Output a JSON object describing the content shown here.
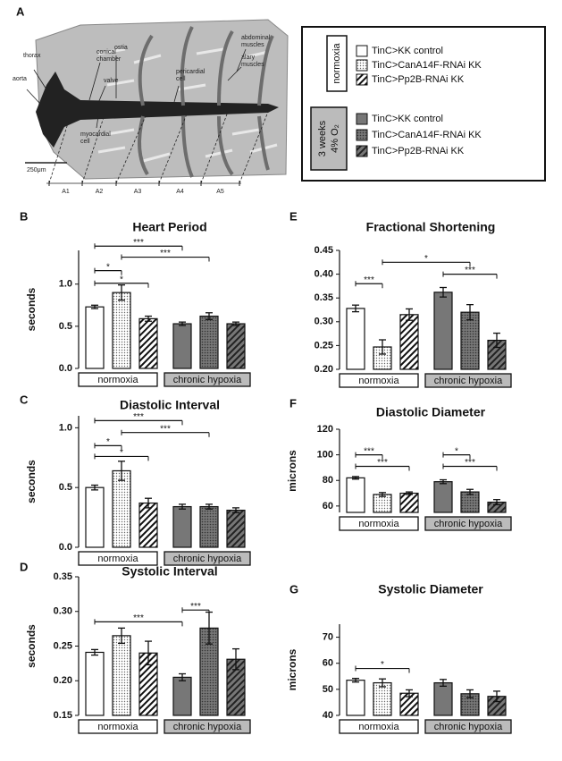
{
  "panel_labels": [
    "A",
    "B",
    "C",
    "D",
    "E",
    "F",
    "G"
  ],
  "diagram": {
    "labels": [
      [
        "thorax"
      ],
      [
        "aorta"
      ],
      [
        "conical",
        "chamber"
      ],
      [
        "ostia"
      ],
      [
        "valve"
      ],
      [
        "myocardial",
        "cell"
      ],
      [
        "pericardial",
        "cell"
      ],
      [
        "abdominal",
        "muscles"
      ],
      [
        "alary",
        "muscles"
      ]
    ],
    "scale_bar": "250μm",
    "segments": [
      "A1",
      "A2",
      "A3",
      "A4",
      "A5"
    ]
  },
  "legend": {
    "groups": [
      {
        "label": [
          "normoxia"
        ],
        "items": [
          {
            "name": "TinC>KK control",
            "color": "#ffffff",
            "pattern": "solid"
          },
          {
            "name": "TinC>CanA14F-RNAi KK",
            "color": "#ffffff",
            "pattern": "dots"
          },
          {
            "name": "TinC>Pp2B-RNAi KK",
            "color": "#ffffff",
            "pattern": "hatch"
          }
        ]
      },
      {
        "label": [
          "3 weeks",
          "4% O₂"
        ],
        "items": [
          {
            "name": "TinC>KK control",
            "color": "#777777",
            "pattern": "solid"
          },
          {
            "name": "TinC>CanA14F-RNAi KK",
            "color": "#777777",
            "pattern": "dots"
          },
          {
            "name": "TinC>Pp2B-RNAi KK",
            "color": "#777777",
            "pattern": "hatch"
          }
        ]
      }
    ]
  },
  "chart_data": [
    {
      "type": "bar",
      "title": "Heart Period",
      "ylabel": "seconds",
      "categories": [
        null,
        null,
        null,
        null,
        null,
        null
      ],
      "values": [
        0.73,
        0.9,
        0.59,
        0.53,
        0.62,
        0.53
      ],
      "errors": [
        0.02,
        0.09,
        0.03,
        0.02,
        0.04,
        0.02
      ],
      "ylim": [
        0,
        1.4
      ],
      "yticks": [
        {
          "value": 0,
          "label": "0.0"
        },
        0.5,
        {
          "value": 1,
          "label": "1.0"
        }
      ],
      "groups": [
        "normoxia",
        "chronic hypoxia"
      ],
      "annotations": [
        {
          "label": "***",
          "bars": [
            0,
            3
          ],
          "y": 1.45
        },
        {
          "label": "***",
          "bars": [
            1,
            4
          ],
          "y": 1.32
        },
        {
          "label": "*",
          "bars": [
            0,
            1
          ],
          "y": 1.16
        },
        {
          "label": "*",
          "bars": [
            0,
            2
          ],
          "y": 1.01
        }
      ]
    },
    {
      "type": "bar",
      "title": "Diastolic Interval",
      "ylabel": "seconds",
      "categories": [
        null,
        null,
        null,
        null,
        null,
        null
      ],
      "values": [
        0.5,
        0.64,
        0.37,
        0.34,
        0.34,
        0.31
      ],
      "errors": [
        0.02,
        0.08,
        0.04,
        0.02,
        0.02,
        0.02
      ],
      "ylim": [
        0,
        1.1
      ],
      "yticks": [
        {
          "value": 0,
          "label": "0.0"
        },
        0.5,
        {
          "value": 1,
          "label": "1.0"
        }
      ],
      "groups": [
        "normoxia",
        "chronic hypoxia"
      ],
      "annotations": [
        {
          "label": "***",
          "bars": [
            0,
            3
          ],
          "y": 1.06
        },
        {
          "label": "***",
          "bars": [
            1,
            4
          ],
          "y": 0.96
        },
        {
          "label": "*",
          "bars": [
            0,
            1
          ],
          "y": 0.85
        },
        {
          "label": "*",
          "bars": [
            0,
            2
          ],
          "y": 0.76
        }
      ]
    },
    {
      "type": "bar",
      "title": "Systolic Interval",
      "ylabel": "seconds",
      "categories": [
        null,
        null,
        null,
        null,
        null,
        null
      ],
      "values": [
        0.241,
        0.265,
        0.24,
        0.205,
        0.276,
        0.231
      ],
      "errors": [
        0.004,
        0.011,
        0.017,
        0.005,
        0.023,
        0.015
      ],
      "ylim": [
        0.15,
        0.35
      ],
      "yticks": [
        0.15,
        {
          "value": 0.2,
          "label": "0.20"
        },
        0.25,
        {
          "value": 0.3,
          "label": "0.30"
        },
        0.35
      ],
      "groups": [
        "normoxia",
        "chronic hypoxia"
      ],
      "annotations": [
        {
          "label": "***",
          "bars": [
            0,
            3
          ],
          "y": 0.285
        },
        {
          "label": "***",
          "bars": [
            3,
            4
          ],
          "y": 0.302
        }
      ]
    },
    {
      "type": "bar",
      "title": "Fractional Shortening",
      "ylabel": null,
      "categories": [
        null,
        null,
        null,
        null,
        null,
        null
      ],
      "values": [
        0.328,
        0.247,
        0.315,
        0.362,
        0.32,
        0.261
      ],
      "errors": [
        0.007,
        0.015,
        0.012,
        0.01,
        0.016,
        0.015
      ],
      "ylim": [
        0.2,
        0.45
      ],
      "yticks": [
        {
          "value": 0.2,
          "label": "0.20"
        },
        0.25,
        {
          "value": 0.3,
          "label": "0.30"
        },
        0.35,
        {
          "value": 0.4,
          "label": "0.40"
        },
        0.45
      ],
      "groups": [
        "normoxia",
        "chronic hypoxia"
      ],
      "annotations": [
        {
          "label": "***",
          "bars": [
            0,
            1
          ],
          "y": 0.38
        },
        {
          "label": "*",
          "bars": [
            1,
            4
          ],
          "y": 0.425
        },
        {
          "label": "***",
          "bars": [
            3,
            5
          ],
          "y": 0.4
        }
      ]
    },
    {
      "type": "bar",
      "title": "Diastolic Diameter",
      "ylabel": "microns",
      "categories": [
        null,
        null,
        null,
        null,
        null,
        null
      ],
      "values": [
        82,
        69,
        70,
        79,
        71,
        63
      ],
      "errors": [
        1,
        1.5,
        1,
        1.5,
        2,
        2
      ],
      "ylim": [
        55,
        120
      ],
      "yticks": [
        60,
        80,
        100,
        120
      ],
      "groups": [
        "normoxia",
        "chronic hypoxia"
      ],
      "annotations": [
        {
          "label": "***",
          "bars": [
            0,
            1
          ],
          "y": 100
        },
        {
          "label": "***",
          "bars": [
            0,
            2
          ],
          "y": 91
        },
        {
          "label": "*",
          "bars": [
            3,
            4
          ],
          "y": 100
        },
        {
          "label": "***",
          "bars": [
            3,
            5
          ],
          "y": 91
        }
      ]
    },
    {
      "type": "bar",
      "title": "Systolic Diameter",
      "ylabel": "microns",
      "categories": [
        null,
        null,
        null,
        null,
        null,
        null
      ],
      "values": [
        53.5,
        52.5,
        48.5,
        52.5,
        48.3,
        47.3
      ],
      "errors": [
        0.7,
        1.5,
        1.3,
        1.3,
        1.5,
        2
      ],
      "ylim": [
        40,
        75
      ],
      "yticks": [
        40,
        50,
        60,
        70
      ],
      "groups": [
        "normoxia",
        "chronic hypoxia"
      ],
      "annotations": [
        {
          "label": "*",
          "bars": [
            0,
            2
          ],
          "y": 58
        }
      ]
    }
  ]
}
